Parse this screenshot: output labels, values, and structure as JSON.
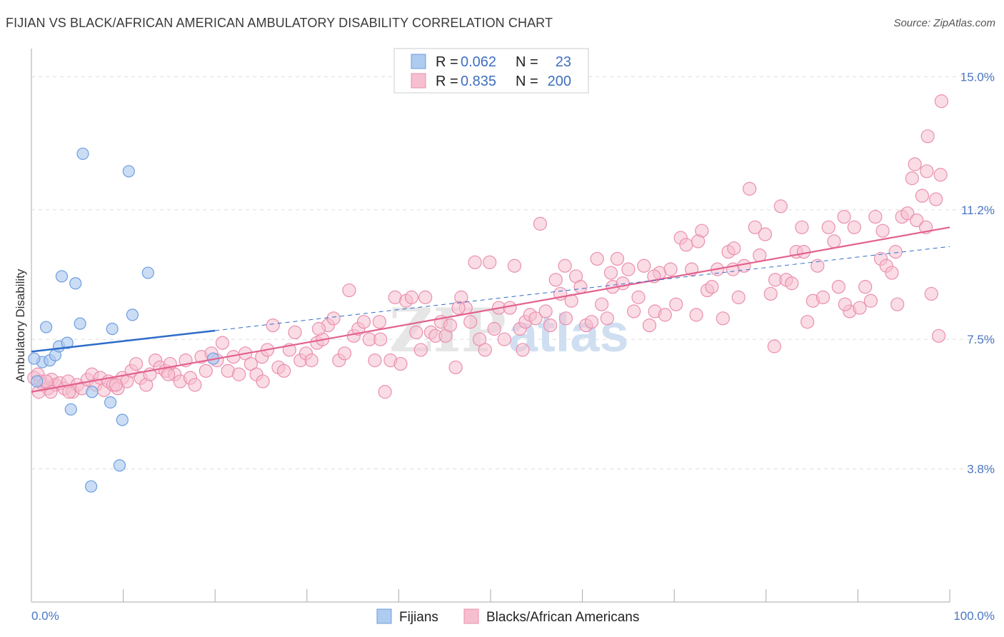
{
  "title": "FIJIAN VS BLACK/AFRICAN AMERICAN AMBULATORY DISABILITY CORRELATION CHART",
  "source": "Source: ZipAtlas.com",
  "watermark": {
    "zip": "ZIP",
    "atlas": "atlas"
  },
  "colors": {
    "fijian_fill": "#aecbf0",
    "fijian_stroke": "#6f9de0",
    "fijian_line": "#2d6cc9",
    "black_fill": "#f6bfd0",
    "black_stroke": "#ea8fae",
    "black_line": "#e3618e",
    "grid": "#dddddd",
    "axis_label": "#4a76c4"
  },
  "legend": {
    "rows": [
      {
        "r_label": "R =",
        "r_value": "0.062",
        "n_label": "N =",
        "n_value": "23"
      },
      {
        "r_label": "R =",
        "r_value": "0.835",
        "n_label": "N =",
        "n_value": "200"
      }
    ]
  },
  "chart_data": {
    "type": "scatter",
    "title": "FIJIAN VS BLACK/AFRICAN AMERICAN AMBULATORY DISABILITY CORRELATION CHART",
    "xlabel": "",
    "ylabel": "Ambulatory Disability",
    "xlim": [
      0,
      100
    ],
    "ylim": [
      0,
      15.6
    ],
    "x_tick_labels": [
      "0.0%",
      "100.0%"
    ],
    "y_ticks": [
      3.8,
      7.5,
      11.2,
      15.0
    ],
    "y_tick_labels": [
      "3.8%",
      "7.5%",
      "11.2%",
      "15.0%"
    ],
    "grid": true,
    "legend_position": "bottom",
    "series": [
      {
        "name": "Fijians",
        "R": 0.062,
        "N": 23,
        "trend_solid": [
          [
            0,
            7.15
          ],
          [
            20,
            7.75
          ]
        ],
        "trend_dashed": [
          [
            20,
            7.75
          ],
          [
            100,
            10.15
          ]
        ],
        "points": [
          [
            0.6,
            6.3
          ],
          [
            1.2,
            6.85
          ],
          [
            1.6,
            7.85
          ],
          [
            2.0,
            6.9
          ],
          [
            2.6,
            7.05
          ],
          [
            3.0,
            7.3
          ],
          [
            3.3,
            9.3
          ],
          [
            3.9,
            7.4
          ],
          [
            4.3,
            5.5
          ],
          [
            4.8,
            9.1
          ],
          [
            5.3,
            7.95
          ],
          [
            5.6,
            12.8
          ],
          [
            6.5,
            3.3
          ],
          [
            6.6,
            6.0
          ],
          [
            8.6,
            5.7
          ],
          [
            8.8,
            7.8
          ],
          [
            9.6,
            3.9
          ],
          [
            9.9,
            5.2
          ],
          [
            10.6,
            12.3
          ],
          [
            11.0,
            8.2
          ],
          [
            12.7,
            9.4
          ],
          [
            19.8,
            6.95
          ],
          [
            0.3,
            6.95
          ]
        ]
      },
      {
        "name": "Blacks/African Americans",
        "R": 0.835,
        "N": 200,
        "trend": [
          [
            0,
            6.0
          ],
          [
            100,
            10.7
          ]
        ],
        "points": [
          [
            0.3,
            6.4
          ],
          [
            0.7,
            6.5
          ],
          [
            1.0,
            6.3
          ],
          [
            1.3,
            6.2
          ],
          [
            1.8,
            6.1
          ],
          [
            2.2,
            6.35
          ],
          [
            2.6,
            6.2
          ],
          [
            3.1,
            6.25
          ],
          [
            3.6,
            6.1
          ],
          [
            4.0,
            6.3
          ],
          [
            4.5,
            6.0
          ],
          [
            5.0,
            6.2
          ],
          [
            5.5,
            6.1
          ],
          [
            6.1,
            6.35
          ],
          [
            6.6,
            6.5
          ],
          [
            7.0,
            6.2
          ],
          [
            7.5,
            6.4
          ],
          [
            7.9,
            6.05
          ],
          [
            8.4,
            6.3
          ],
          [
            8.9,
            6.2
          ],
          [
            9.4,
            6.1
          ],
          [
            9.9,
            6.4
          ],
          [
            10.4,
            6.3
          ],
          [
            10.9,
            6.6
          ],
          [
            11.4,
            6.8
          ],
          [
            11.9,
            6.4
          ],
          [
            12.5,
            6.2
          ],
          [
            12.9,
            6.5
          ],
          [
            13.5,
            6.9
          ],
          [
            14.0,
            6.7
          ],
          [
            14.6,
            6.6
          ],
          [
            15.1,
            6.8
          ],
          [
            15.6,
            6.5
          ],
          [
            16.2,
            6.3
          ],
          [
            16.8,
            6.9
          ],
          [
            17.3,
            6.4
          ],
          [
            17.8,
            6.2
          ],
          [
            18.5,
            7.0
          ],
          [
            19.0,
            6.6
          ],
          [
            19.6,
            7.1
          ],
          [
            20.2,
            6.9
          ],
          [
            20.8,
            7.4
          ],
          [
            21.4,
            6.6
          ],
          [
            22.0,
            7.0
          ],
          [
            22.6,
            6.5
          ],
          [
            23.3,
            7.1
          ],
          [
            23.9,
            6.8
          ],
          [
            24.5,
            6.5
          ],
          [
            25.1,
            7.0
          ],
          [
            25.7,
            7.2
          ],
          [
            26.3,
            7.9
          ],
          [
            26.9,
            6.7
          ],
          [
            27.5,
            6.6
          ],
          [
            28.1,
            7.2
          ],
          [
            28.7,
            7.7
          ],
          [
            29.3,
            6.9
          ],
          [
            29.9,
            7.1
          ],
          [
            30.5,
            6.9
          ],
          [
            31.1,
            7.4
          ],
          [
            31.7,
            7.5
          ],
          [
            32.3,
            7.9
          ],
          [
            32.9,
            8.1
          ],
          [
            33.5,
            6.9
          ],
          [
            34.1,
            7.1
          ],
          [
            34.6,
            8.9
          ],
          [
            35.1,
            7.6
          ],
          [
            35.6,
            7.8
          ],
          [
            36.2,
            8.0
          ],
          [
            36.8,
            7.5
          ],
          [
            37.4,
            6.9
          ],
          [
            38.0,
            7.5
          ],
          [
            38.5,
            6.0
          ],
          [
            39.1,
            6.9
          ],
          [
            39.6,
            8.7
          ],
          [
            40.2,
            6.8
          ],
          [
            40.8,
            8.6
          ],
          [
            41.4,
            8.7
          ],
          [
            41.9,
            7.7
          ],
          [
            42.4,
            7.2
          ],
          [
            42.9,
            8.7
          ],
          [
            43.5,
            7.7
          ],
          [
            44.0,
            7.6
          ],
          [
            44.6,
            8.0
          ],
          [
            45.1,
            7.6
          ],
          [
            45.6,
            7.9
          ],
          [
            46.2,
            6.7
          ],
          [
            46.8,
            8.7
          ],
          [
            47.3,
            8.4
          ],
          [
            47.8,
            8.0
          ],
          [
            48.3,
            9.7
          ],
          [
            48.8,
            7.5
          ],
          [
            49.4,
            7.2
          ],
          [
            49.9,
            9.7
          ],
          [
            50.4,
            7.8
          ],
          [
            50.9,
            8.4
          ],
          [
            51.5,
            7.5
          ],
          [
            52.1,
            8.4
          ],
          [
            52.6,
            9.6
          ],
          [
            53.2,
            7.8
          ],
          [
            53.8,
            8.0
          ],
          [
            54.3,
            8.2
          ],
          [
            54.9,
            8.1
          ],
          [
            55.4,
            10.8
          ],
          [
            56.0,
            8.3
          ],
          [
            56.5,
            7.9
          ],
          [
            57.1,
            9.2
          ],
          [
            57.6,
            8.8
          ],
          [
            58.2,
            8.1
          ],
          [
            58.8,
            8.6
          ],
          [
            59.3,
            9.3
          ],
          [
            59.8,
            9.0
          ],
          [
            60.4,
            7.9
          ],
          [
            61.0,
            8.0
          ],
          [
            61.6,
            9.8
          ],
          [
            62.1,
            8.5
          ],
          [
            62.7,
            8.1
          ],
          [
            63.3,
            9.0
          ],
          [
            63.8,
            9.8
          ],
          [
            64.4,
            9.1
          ],
          [
            65.0,
            9.5
          ],
          [
            65.6,
            8.3
          ],
          [
            66.1,
            8.7
          ],
          [
            66.7,
            9.6
          ],
          [
            67.3,
            7.9
          ],
          [
            67.9,
            8.3
          ],
          [
            68.4,
            9.4
          ],
          [
            69.0,
            8.2
          ],
          [
            69.6,
            9.5
          ],
          [
            70.2,
            8.5
          ],
          [
            70.7,
            10.4
          ],
          [
            71.3,
            10.2
          ],
          [
            71.9,
            9.5
          ],
          [
            72.4,
            8.2
          ],
          [
            73.0,
            10.6
          ],
          [
            73.6,
            8.9
          ],
          [
            74.1,
            9.0
          ],
          [
            74.7,
            9.5
          ],
          [
            75.3,
            8.1
          ],
          [
            75.9,
            10.0
          ],
          [
            76.4,
            9.5
          ],
          [
            77.0,
            8.7
          ],
          [
            77.6,
            9.6
          ],
          [
            78.2,
            11.8
          ],
          [
            78.8,
            10.7
          ],
          [
            79.3,
            9.9
          ],
          [
            79.9,
            10.5
          ],
          [
            80.5,
            8.8
          ],
          [
            81.0,
            9.2
          ],
          [
            81.6,
            11.3
          ],
          [
            82.2,
            9.2
          ],
          [
            82.8,
            9.1
          ],
          [
            83.3,
            10.0
          ],
          [
            83.9,
            10.7
          ],
          [
            84.5,
            8.0
          ],
          [
            85.1,
            8.6
          ],
          [
            85.6,
            9.6
          ],
          [
            86.2,
            8.7
          ],
          [
            86.8,
            10.7
          ],
          [
            87.4,
            10.3
          ],
          [
            87.9,
            9.0
          ],
          [
            88.5,
            11.0
          ],
          [
            89.1,
            8.3
          ],
          [
            89.6,
            10.7
          ],
          [
            90.2,
            8.4
          ],
          [
            90.8,
            9.0
          ],
          [
            91.4,
            8.6
          ],
          [
            91.9,
            11.0
          ],
          [
            92.5,
            9.8
          ],
          [
            93.1,
            9.6
          ],
          [
            93.7,
            9.4
          ],
          [
            94.3,
            8.5
          ],
          [
            94.8,
            11.0
          ],
          [
            95.4,
            11.1
          ],
          [
            95.9,
            12.1
          ],
          [
            96.4,
            10.9
          ],
          [
            97.0,
            11.6
          ],
          [
            97.5,
            12.3
          ],
          [
            98.0,
            8.8
          ],
          [
            98.5,
            11.5
          ],
          [
            99.0,
            12.2
          ],
          [
            97.6,
            13.3
          ],
          [
            99.1,
            14.3
          ],
          [
            98.8,
            7.6
          ],
          [
            97.4,
            10.7
          ],
          [
            96.2,
            12.5
          ],
          [
            94.1,
            10.0
          ],
          [
            92.7,
            10.6
          ],
          [
            88.6,
            8.5
          ],
          [
            84.1,
            10.0
          ],
          [
            80.9,
            7.3
          ],
          [
            76.5,
            10.1
          ],
          [
            72.6,
            10.3
          ],
          [
            67.8,
            9.3
          ],
          [
            63.1,
            9.4
          ],
          [
            58.1,
            9.6
          ],
          [
            53.5,
            7.2
          ],
          [
            46.5,
            8.4
          ],
          [
            37.9,
            8.0
          ],
          [
            31.3,
            7.8
          ],
          [
            25.2,
            6.3
          ],
          [
            14.9,
            6.5
          ],
          [
            9.2,
            6.2
          ],
          [
            4.1,
            6.0
          ],
          [
            2.1,
            6.0
          ],
          [
            0.8,
            6.0
          ],
          [
            1.6,
            6.3
          ]
        ]
      }
    ]
  },
  "bottom_legend": [
    {
      "label": "Fijians"
    },
    {
      "label": "Blacks/African Americans"
    }
  ]
}
